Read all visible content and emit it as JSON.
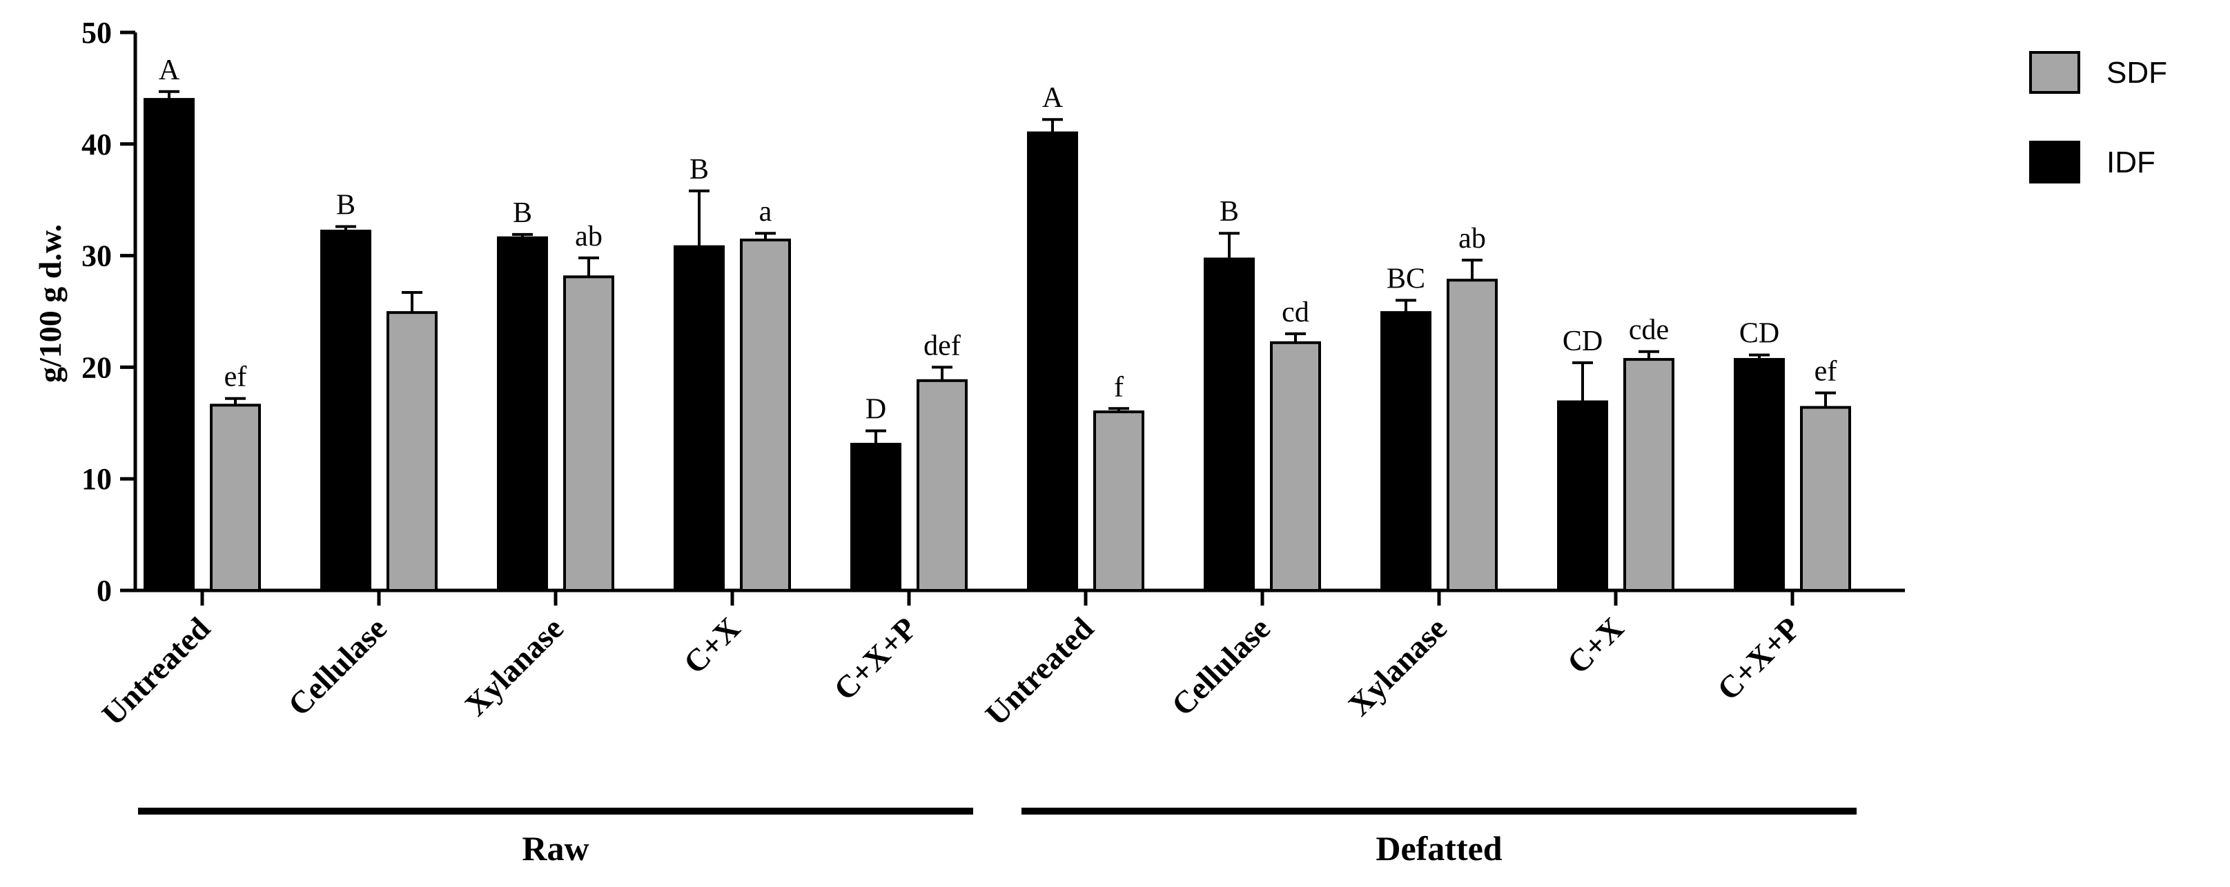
{
  "chart_data": {
    "type": "bar",
    "ylabel": "g/100 g d.w.",
    "xlabel": "",
    "ylim": [
      0,
      50
    ],
    "yticks": [
      0,
      10,
      20,
      30,
      40,
      50
    ],
    "grid": false,
    "legend_position": "top-right",
    "categories": [
      "Untreated",
      "Cellulase",
      "Xylanase",
      "C+X",
      "C+X+P",
      "Untreated",
      "Cellulase",
      "Xylanase",
      "C+X",
      "C+X+P"
    ],
    "groups": [
      {
        "label": "Raw",
        "category_indices": [
          0,
          1,
          2,
          3,
          4
        ]
      },
      {
        "label": "Defatted",
        "category_indices": [
          5,
          6,
          7,
          8,
          9
        ]
      }
    ],
    "series": [
      {
        "name": "IDF",
        "color": "#000000",
        "values": [
          44.0,
          32.2,
          31.6,
          30.8,
          13.1,
          41.0,
          29.7,
          24.9,
          16.9,
          20.7
        ],
        "errors": [
          0.7,
          0.4,
          0.3,
          5.0,
          1.2,
          1.2,
          2.3,
          1.1,
          3.5,
          0.4
        ],
        "significance": [
          "A",
          "B",
          "B",
          "B",
          "D",
          "A",
          "B",
          "BC",
          "CD",
          "CD"
        ]
      },
      {
        "name": "SDF",
        "color": "#a6a6a6",
        "values": [
          16.6,
          24.9,
          28.1,
          31.4,
          18.8,
          16.0,
          22.2,
          27.8,
          20.7,
          16.4
        ],
        "errors": [
          0.6,
          1.8,
          1.7,
          0.6,
          1.2,
          0.3,
          0.8,
          1.8,
          0.7,
          1.3
        ],
        "significance": [
          "ef",
          "",
          "ab",
          "a",
          "def",
          "f",
          "cd",
          "ab",
          "cde",
          "ef"
        ]
      }
    ],
    "legend": [
      {
        "name": "SDF",
        "color": "#a6a6a6"
      },
      {
        "name": "IDF",
        "color": "#000000"
      }
    ]
  }
}
